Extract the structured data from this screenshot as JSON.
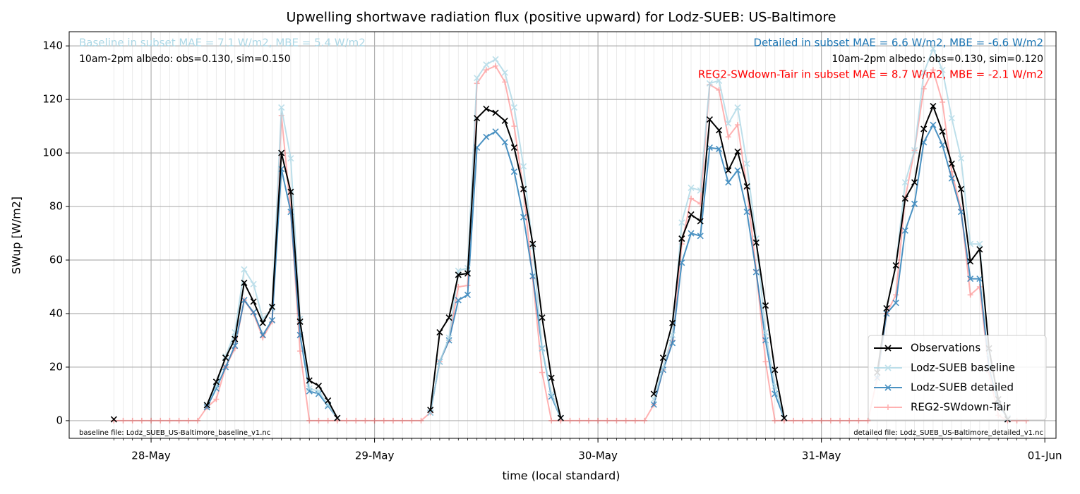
{
  "chart_data": {
    "type": "line",
    "title": "Upwelling shortwave radiation flux (positive upward) for Lodz-SUEB: US-Baltimore",
    "xlabel": "time (local standard)",
    "ylabel": "SWup [W/m2]",
    "x": [
      -4,
      -3,
      -2,
      -1,
      0,
      1,
      2,
      3,
      4,
      5,
      6,
      7,
      8,
      9,
      10,
      11,
      12,
      13,
      14,
      15,
      16,
      17,
      18,
      19,
      20,
      21,
      22,
      23,
      24,
      25,
      26,
      27,
      28,
      29,
      30,
      31,
      32,
      33,
      34,
      35,
      36,
      37,
      38,
      39,
      40,
      41,
      42,
      43,
      44,
      45,
      46,
      47,
      48,
      49,
      50,
      51,
      52,
      53,
      54,
      55,
      56,
      57,
      58,
      59,
      60,
      61,
      62,
      63,
      64,
      65,
      66,
      67,
      68,
      69,
      70,
      71,
      72,
      73,
      74,
      75,
      76,
      77,
      78,
      79,
      80,
      81,
      82,
      83,
      84,
      85,
      86,
      87,
      88,
      89,
      90,
      91,
      92,
      93,
      94
    ],
    "xlim": [
      -8.8,
      97.2
    ],
    "xticks": [
      {
        "value": 0,
        "label": "28-May"
      },
      {
        "value": 24,
        "label": "29-May"
      },
      {
        "value": 48,
        "label": "30-May"
      },
      {
        "value": 72,
        "label": "31-May"
      },
      {
        "value": 96,
        "label": "01-Jun"
      }
    ],
    "ylim": [
      -6.6,
      145.3
    ],
    "yticks": [
      0,
      20,
      40,
      60,
      80,
      100,
      120,
      140
    ],
    "grid": true,
    "legend": "lower right",
    "series": [
      {
        "name": "Observations",
        "color": "#000000",
        "opacity": 1,
        "marker": "x",
        "values": [
          0.5,
          null,
          null,
          null,
          null,
          null,
          null,
          null,
          null,
          null,
          5.8,
          14.5,
          23.5,
          30.5,
          51.5,
          44.5,
          36.5,
          42.5,
          100,
          85.5,
          37,
          15,
          13,
          7.5,
          1,
          null,
          null,
          null,
          null,
          null,
          null,
          null,
          null,
          null,
          4,
          33,
          38.5,
          54.5,
          55,
          113,
          116.5,
          115,
          112,
          102,
          86.5,
          66,
          38.5,
          16,
          1,
          null,
          null,
          null,
          null,
          null,
          null,
          null,
          null,
          null,
          10,
          23.5,
          36.5,
          68,
          77,
          74.5,
          112.5,
          108.5,
          93.5,
          100.5,
          87.5,
          66.5,
          43,
          19,
          1,
          null,
          null,
          null,
          null,
          null,
          null,
          null,
          null,
          null,
          18,
          42,
          58,
          83,
          89,
          109,
          117.5,
          108,
          96,
          86.5,
          59.5,
          64,
          27,
          8,
          0.5,
          null,
          null
        ]
      },
      {
        "name": "Lodz-SUEB baseline",
        "color": "#add8e6",
        "opacity": 0.8,
        "marker": "x",
        "values": [
          null,
          null,
          null,
          null,
          null,
          null,
          null,
          null,
          null,
          null,
          6,
          13,
          24,
          33,
          56.5,
          51,
          38,
          42,
          117,
          98,
          38,
          12,
          11,
          6,
          1,
          null,
          null,
          null,
          null,
          null,
          null,
          null,
          null,
          null,
          3,
          22,
          31,
          56,
          57,
          128,
          133,
          135,
          130,
          117,
          95,
          65,
          27,
          10,
          1,
          null,
          null,
          null,
          null,
          null,
          null,
          null,
          null,
          null,
          8,
          20,
          32,
          74,
          87,
          86,
          126,
          127,
          111,
          117,
          96,
          68,
          33,
          13,
          1,
          null,
          null,
          null,
          null,
          null,
          null,
          null,
          null,
          null,
          18,
          42,
          58,
          89,
          101,
          130,
          139,
          131,
          113,
          98,
          66,
          66,
          25,
          8,
          1,
          null,
          null
        ]
      },
      {
        "name": "Lodz-SUEB detailed",
        "color": "#1f77b4",
        "opacity": 0.8,
        "marker": "x",
        "values": [
          null,
          null,
          null,
          null,
          null,
          null,
          null,
          null,
          null,
          null,
          5,
          12,
          20,
          28,
          45,
          40.5,
          32,
          37.5,
          94,
          78,
          32,
          11,
          10,
          5.5,
          1,
          null,
          null,
          null,
          null,
          null,
          null,
          null,
          null,
          null,
          3,
          22,
          30,
          45,
          47,
          102,
          106,
          108,
          104,
          93,
          76,
          54,
          27,
          9,
          1,
          null,
          null,
          null,
          null,
          null,
          null,
          null,
          null,
          null,
          6,
          19,
          29,
          59,
          70,
          69,
          102,
          101.5,
          89,
          93.5,
          78,
          55.5,
          30,
          10,
          1,
          null,
          null,
          null,
          null,
          null,
          null,
          null,
          null,
          null,
          16,
          40,
          44,
          71,
          81,
          104,
          110.5,
          103,
          90.5,
          78,
          53,
          53,
          20,
          6,
          1,
          null,
          null
        ]
      },
      {
        "name": "REG2-SWdown-Tair",
        "color": "#ff0000",
        "opacity": 0.3,
        "marker": "+",
        "values": [
          0,
          0,
          0,
          0,
          0,
          0,
          0,
          0,
          0,
          0,
          5,
          8,
          20,
          27,
          45,
          40,
          31,
          37,
          114,
          78,
          26,
          0,
          0,
          0,
          0,
          0,
          0,
          0,
          0,
          0,
          0,
          0,
          0,
          0,
          3,
          22,
          30,
          50,
          50.5,
          126,
          131,
          132.5,
          126.5,
          110,
          86,
          53,
          18,
          0,
          0,
          0,
          0,
          0,
          0,
          0,
          0,
          0,
          0,
          0,
          6,
          19,
          30,
          66,
          83,
          81,
          125.5,
          123.5,
          106,
          110.5,
          87,
          56,
          22,
          0,
          0,
          0,
          0,
          0,
          0,
          0,
          0,
          0,
          0,
          0,
          16,
          40,
          47,
          83,
          101,
          124,
          131,
          119,
          93,
          79,
          47,
          50,
          18,
          2,
          0,
          0,
          0
        ]
      }
    ],
    "annotations": [
      {
        "text": "Baseline in subset MAE = 7.1 W/m2, MBE = 5.4 W/m2",
        "color": "#add8e6"
      },
      {
        "text": "10am-2pm albedo: obs=0.130, sim=0.150",
        "color": "#000000"
      },
      {
        "text": "Detailed in subset MAE = 6.6 W/m2, MBE = -6.6 W/m2",
        "color": "#1f77b4"
      },
      {
        "text": "10am-2pm albedo: obs=0.130, sim=0.120",
        "color": "#000000"
      },
      {
        "text": "REG2-SWdown-Tair in subset MAE = 8.7 W/m2, MBE = -2.1 W/m2",
        "color": "#ff0000"
      },
      {
        "text": "baseline file: Lodz_SUEB_US-Baltimore_baseline_v1.nc",
        "color": "#000000"
      },
      {
        "text": "detailed file: Lodz_SUEB_US-Baltimore_detailed_v1.nc",
        "color": "#000000"
      }
    ]
  }
}
